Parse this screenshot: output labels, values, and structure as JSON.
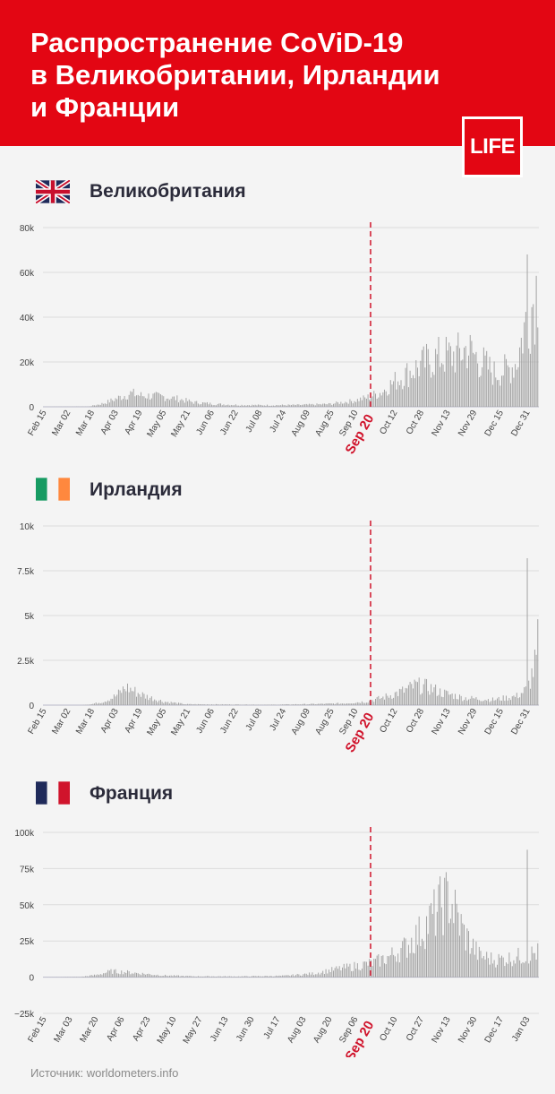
{
  "header": {
    "title_lines": [
      "Распространение CoViD-19",
      "в Великобритании, Ирландии",
      "и Франции"
    ],
    "logo": "LIFE",
    "accent_color": "#e30613"
  },
  "source": "Источник: worldometers.info",
  "chart_data": [
    {
      "type": "bar",
      "title": "Великобритания",
      "flag": "uk-flag",
      "ylim": [
        0,
        80000
      ],
      "y_ticks": [
        0,
        20000,
        40000,
        60000,
        80000
      ],
      "y_tick_labels": [
        "0",
        "20k",
        "40k",
        "60k",
        "80k"
      ],
      "x_tick_labels": [
        "Feb 15",
        "Mar 02",
        "Mar 18",
        "Apr 03",
        "Apr 19",
        "May 05",
        "May 21",
        "Jun 06",
        "Jun 22",
        "Jul 08",
        "Jul 24",
        "Aug 09",
        "Aug 25",
        "Sep 10",
        "Oct 12",
        "Oct 28",
        "Nov 13",
        "Nov 29",
        "Dec 15",
        "Dec 31"
      ],
      "highlight_label": "Sep 20",
      "highlight_index": 218,
      "n_days": 330,
      "start_date": "Feb 15",
      "daily_cases_anchors": [
        [
          0,
          0
        ],
        [
          30,
          100
        ],
        [
          40,
          1500
        ],
        [
          50,
          4000
        ],
        [
          58,
          6000
        ],
        [
          65,
          5000
        ],
        [
          80,
          4500
        ],
        [
          90,
          3500
        ],
        [
          100,
          2000
        ],
        [
          115,
          1200
        ],
        [
          130,
          800
        ],
        [
          150,
          700
        ],
        [
          170,
          800
        ],
        [
          190,
          1200
        ],
        [
          205,
          2500
        ],
        [
          215,
          4000
        ],
        [
          225,
          6500
        ],
        [
          235,
          12000
        ],
        [
          245,
          16000
        ],
        [
          255,
          20000
        ],
        [
          265,
          22500
        ],
        [
          275,
          23000
        ],
        [
          282,
          26000
        ],
        [
          290,
          21000
        ],
        [
          300,
          15000
        ],
        [
          310,
          17000
        ],
        [
          315,
          20000
        ],
        [
          320,
          35000
        ],
        [
          325,
          45000
        ],
        [
          330,
          58000
        ],
        [
          334,
          63000
        ],
        [
          338,
          58000
        ]
      ],
      "peak_value": 68000
    },
    {
      "type": "bar",
      "title": "Ирландия",
      "flag": "ireland-flag",
      "ylim": [
        0,
        10000
      ],
      "y_ticks": [
        0,
        2500,
        5000,
        7500,
        10000
      ],
      "y_tick_labels": [
        "0",
        "2.5k",
        "5k",
        "7.5k",
        "10k"
      ],
      "x_tick_labels": [
        "Feb 15",
        "Mar 02",
        "Mar 18",
        "Apr 03",
        "Apr 19",
        "May 05",
        "May 21",
        "Jun 06",
        "Jun 22",
        "Jul 08",
        "Jul 24",
        "Aug 09",
        "Aug 25",
        "Sep 10",
        "Oct 12",
        "Oct 28",
        "Nov 13",
        "Nov 29",
        "Dec 15",
        "Dec 31"
      ],
      "highlight_label": "Sep 20",
      "highlight_index": 218,
      "n_days": 330,
      "start_date": "Feb 15",
      "daily_cases_anchors": [
        [
          0,
          0
        ],
        [
          25,
          0
        ],
        [
          32,
          50
        ],
        [
          40,
          200
        ],
        [
          48,
          500
        ],
        [
          55,
          1000
        ],
        [
          60,
          800
        ],
        [
          68,
          500
        ],
        [
          80,
          200
        ],
        [
          95,
          50
        ],
        [
          150,
          20
        ],
        [
          180,
          60
        ],
        [
          200,
          100
        ],
        [
          215,
          200
        ],
        [
          225,
          400
        ],
        [
          240,
          800
        ],
        [
          248,
          1100
        ],
        [
          256,
          1000
        ],
        [
          265,
          700
        ],
        [
          280,
          400
        ],
        [
          300,
          300
        ],
        [
          315,
          500
        ],
        [
          322,
          900
        ],
        [
          328,
          2500
        ],
        [
          332,
          6000
        ],
        [
          336,
          7000
        ],
        [
          340,
          6000
        ]
      ],
      "peak_value": 8200
    },
    {
      "type": "bar",
      "title": "Франция",
      "flag": "france-flag",
      "ylim": [
        -25000,
        100000
      ],
      "y_ticks": [
        -25000,
        0,
        25000,
        50000,
        75000,
        100000
      ],
      "y_tick_labels": [
        "−25k",
        "0",
        "25k",
        "50k",
        "75k",
        "100k"
      ],
      "x_tick_labels": [
        "Feb 15",
        "Mar 03",
        "Mar 20",
        "Apr 06",
        "Apr 23",
        "May 10",
        "May 27",
        "Jun 13",
        "Jun 30",
        "Jul 17",
        "Aug 03",
        "Aug 20",
        "Sep 06",
        "Oct 10",
        "Oct 27",
        "Nov 13",
        "Nov 30",
        "Dec 17",
        "Jan 03"
      ],
      "highlight_label": "Sep 20",
      "highlight_index": 218,
      "n_days": 330,
      "start_date": "Feb 15",
      "daily_cases_anchors": [
        [
          0,
          0
        ],
        [
          25,
          200
        ],
        [
          35,
          1500
        ],
        [
          45,
          4000
        ],
        [
          55,
          3500
        ],
        [
          65,
          2500
        ],
        [
          80,
          1200
        ],
        [
          100,
          600
        ],
        [
          130,
          500
        ],
        [
          160,
          900
        ],
        [
          180,
          2500
        ],
        [
          195,
          5500
        ],
        [
          210,
          8000
        ],
        [
          220,
          10000
        ],
        [
          230,
          14000
        ],
        [
          240,
          20000
        ],
        [
          250,
          30000
        ],
        [
          258,
          40000
        ],
        [
          265,
          50000
        ],
        [
          270,
          55000
        ],
        [
          274,
          45000
        ],
        [
          280,
          30000
        ],
        [
          290,
          15000
        ],
        [
          300,
          12000
        ],
        [
          310,
          13000
        ],
        [
          320,
          15000
        ],
        [
          330,
          17000
        ],
        [
          335,
          19000
        ]
      ],
      "peak_value": 88000
    }
  ]
}
